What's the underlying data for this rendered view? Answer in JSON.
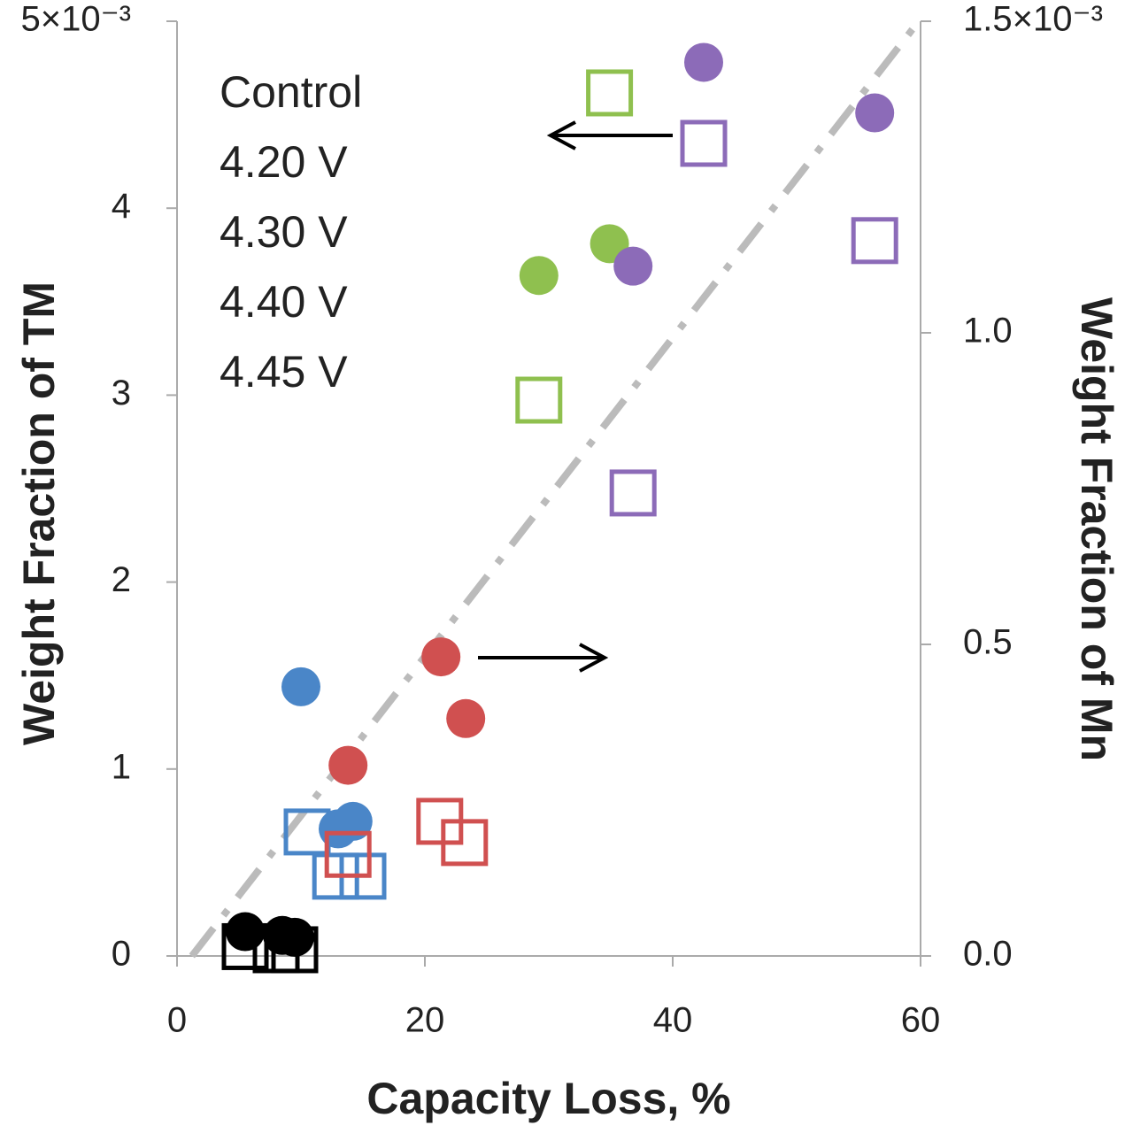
{
  "chart_data": {
    "type": "scatter",
    "xlabel": "Capacity Loss, %",
    "ylabel": "Weight Fraction of TM",
    "y2label": "Weight Fraction of Mn",
    "xlim": [
      0,
      60
    ],
    "xticks": [
      0,
      20,
      40,
      60
    ],
    "ylim": [
      0,
      5
    ],
    "yticks": [
      0,
      1,
      2,
      3,
      4,
      {
        "value": 5,
        "label": "5×10⁻³"
      }
    ],
    "y2lim": [
      0,
      1.5
    ],
    "y2ticks": [
      {
        "value": 0,
        "label": "0.0"
      },
      {
        "value": 0.5,
        "label": "0.5"
      },
      {
        "value": 1,
        "label": "1.0"
      },
      {
        "value": 1.5,
        "label": "1.5×10⁻³"
      }
    ],
    "series": [
      {
        "name": "Control",
        "color": "#000000",
        "x": [
          5.5,
          8.5,
          9.5
        ],
        "values": [
          0.13,
          0.11,
          0.1
        ],
        "y2_x": [
          5.5,
          8,
          9.5
        ],
        "y2_values": [
          0.015,
          0.01,
          0.01
        ]
      },
      {
        "name": "4.20 V",
        "color": "#4a86c8",
        "x": [
          10,
          13,
          14.2
        ],
        "values": [
          1.44,
          0.68,
          0.72
        ],
        "y2_x": [
          10.5,
          12.8,
          15
        ],
        "y2_values": [
          0.199,
          0.128,
          0.128
        ]
      },
      {
        "name": "4.30 V",
        "color": "#d05050",
        "x": [
          13.8,
          21.3,
          23.3
        ],
        "values": [
          1.02,
          1.6,
          1.27
        ],
        "y2_x": [
          13.8,
          21.2,
          23.2
        ],
        "y2_values": [
          0.163,
          0.216,
          0.182
        ]
      },
      {
        "name": "4.40 V",
        "color": "#8fc04f",
        "x": [
          29.2,
          34.9
        ],
        "values": [
          3.64,
          3.81
        ],
        "y2_x": [
          29.2,
          34.9
        ],
        "y2_values": [
          0.892,
          1.385
        ]
      },
      {
        "name": "4.45 V",
        "color": "#8c6bb8",
        "x": [
          42.5,
          56.3,
          36.8
        ],
        "values": [
          4.78,
          4.51,
          3.69
        ],
        "y2_x": [
          42.5,
          56.3,
          36.8
        ],
        "y2_values": [
          1.304,
          1.148,
          0.743
        ]
      }
    ],
    "legend_text_colors": [
      "#444444",
      "#4a86c8",
      "#d05050",
      "#8fc04f",
      "#8c6bb8"
    ],
    "trendline": {
      "x": [
        1.2,
        59.5
      ],
      "values": [
        0,
        4.97
      ],
      "color": "#bbbbbb"
    }
  }
}
